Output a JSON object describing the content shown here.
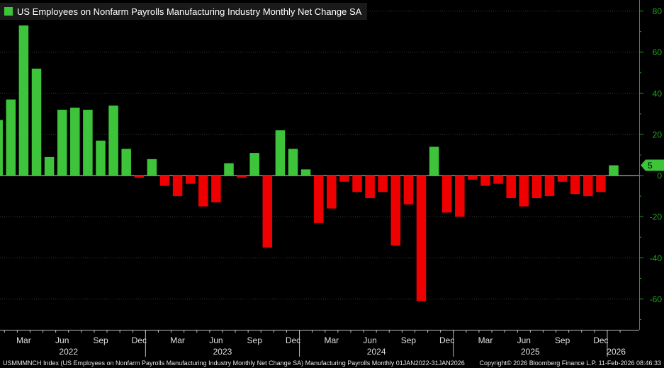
{
  "chart_data": {
    "type": "bar",
    "title": "US Employees on Nonfarm Payrolls Manufacturing Industry Monthly Net Change SA",
    "ylim": [
      -75,
      84
    ],
    "yticks": [
      80,
      60,
      40,
      20,
      0,
      -20,
      -40,
      -60
    ],
    "tick_labels": [
      "80",
      "60",
      "40",
      "20",
      "0",
      "-20",
      "-40",
      "-60"
    ],
    "last_value_label": "5",
    "month_labels": [
      {
        "index": 2,
        "label": "Mar"
      },
      {
        "index": 5,
        "label": "Jun"
      },
      {
        "index": 8,
        "label": "Sep"
      },
      {
        "index": 11,
        "label": "Dec"
      },
      {
        "index": 14,
        "label": "Mar"
      },
      {
        "index": 17,
        "label": "Jun"
      },
      {
        "index": 20,
        "label": "Sep"
      },
      {
        "index": 23,
        "label": "Dec"
      },
      {
        "index": 26,
        "label": "Mar"
      },
      {
        "index": 29,
        "label": "Jun"
      },
      {
        "index": 32,
        "label": "Sep"
      },
      {
        "index": 35,
        "label": "Dec"
      },
      {
        "index": 38,
        "label": "Mar"
      },
      {
        "index": 41,
        "label": "Jun"
      },
      {
        "index": 44,
        "label": "Sep"
      },
      {
        "index": 47,
        "label": "Dec"
      }
    ],
    "year_labels": [
      {
        "center": 5.5,
        "label": "2022"
      },
      {
        "center": 17.5,
        "label": "2023"
      },
      {
        "center": 29.5,
        "label": "2024"
      },
      {
        "center": 41.5,
        "label": "2025"
      },
      {
        "center": 48.2,
        "label": "2026"
      }
    ],
    "year_boundaries": [
      12,
      24,
      36,
      48
    ],
    "values": [
      27,
      37,
      73,
      52,
      9,
      32,
      33,
      32,
      17,
      34,
      13,
      -1,
      8,
      -5,
      -10,
      -4,
      -15,
      -13,
      6,
      -1,
      11,
      -35,
      22,
      13,
      3,
      -23,
      -16,
      -3,
      -8,
      -11,
      -8,
      -34,
      -14,
      -61,
      14,
      -18,
      -20,
      -2,
      -5,
      -4,
      -11,
      -15,
      -11,
      -10,
      -3,
      -9,
      -10,
      -8,
      5
    ],
    "colors": {
      "positive": "#3dc43a",
      "negative": "#ee0000",
      "axis": "#1fa41f",
      "grid": "#3a3a3a"
    }
  },
  "footer": {
    "left": "USMMMNCH Index (US Employees on Nonfarm Payrolls Manufacturing Industry Monthly Net Change SA) Manufacturing Payrolls Monthly 01JAN2022-31JAN2026",
    "right": "Copyright© 2026 Bloomberg Finance L.P.     11-Feb-2026 08:46:33"
  }
}
